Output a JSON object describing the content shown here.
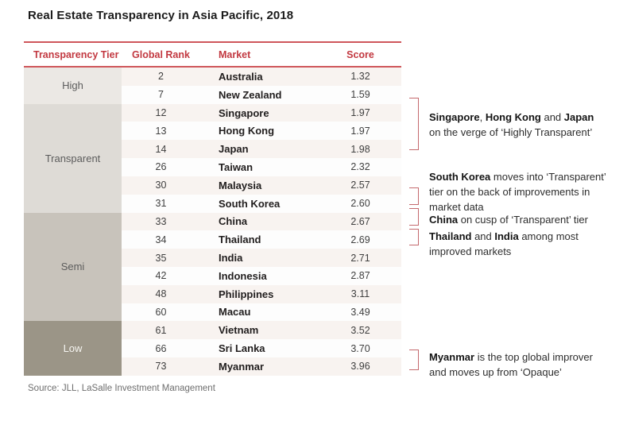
{
  "title": "Real Estate Transparency in Asia Pacific, 2018",
  "source": "Source: JLL, LaSalle Investment Management",
  "colors": {
    "accent_red_text": "#c23840",
    "rule_red": "#cf565b",
    "bracket_red": "#c4696d",
    "row_stripe": "#f8f3f0",
    "tier_high_bg": "#ebe8e4",
    "tier_transparent_bg": "#dedbd6",
    "tier_semi_bg": "#c8c3bb",
    "tier_low_bg": "#9b9587",
    "tier_text_dark": "#5c5c5c",
    "tier_text_light": "#f6f5f1"
  },
  "table": {
    "headers": [
      "Transparency Tier",
      "Global Rank",
      "Market",
      "Score"
    ],
    "tiers": [
      {
        "label": "High",
        "rows": 2,
        "bg": "#ebe8e4",
        "fg": "#5c5c5c"
      },
      {
        "label": "Transparent",
        "rows": 6,
        "bg": "#dedbd6",
        "fg": "#5c5c5c"
      },
      {
        "label": "Semi",
        "rows": 6,
        "bg": "#c8c3bb",
        "fg": "#5c5c5c"
      },
      {
        "label": "Low",
        "rows": 3,
        "bg": "#9b9587",
        "fg": "#f6f5f1"
      }
    ],
    "rows": [
      {
        "rank": "2",
        "market": "Australia",
        "score": "1.32"
      },
      {
        "rank": "7",
        "market": "New Zealand",
        "score": "1.59"
      },
      {
        "rank": "12",
        "market": "Singapore",
        "score": "1.97"
      },
      {
        "rank": "13",
        "market": "Hong Kong",
        "score": "1.97"
      },
      {
        "rank": "14",
        "market": "Japan",
        "score": "1.98"
      },
      {
        "rank": "26",
        "market": "Taiwan",
        "score": "2.32"
      },
      {
        "rank": "30",
        "market": "Malaysia",
        "score": "2.57"
      },
      {
        "rank": "31",
        "market": "South Korea",
        "score": "2.60"
      },
      {
        "rank": "33",
        "market": "China",
        "score": "2.67"
      },
      {
        "rank": "34",
        "market": "Thailand",
        "score": "2.69"
      },
      {
        "rank": "35",
        "market": "India",
        "score": "2.71"
      },
      {
        "rank": "42",
        "market": "Indonesia",
        "score": "2.87"
      },
      {
        "rank": "48",
        "market": "Philippines",
        "score": "3.11"
      },
      {
        "rank": "60",
        "market": "Macau",
        "score": "3.49"
      },
      {
        "rank": "61",
        "market": "Vietnam",
        "score": "3.52"
      },
      {
        "rank": "66",
        "market": "Sri Lanka",
        "score": "3.70"
      },
      {
        "rank": "73",
        "market": "Myanmar",
        "score": "3.96"
      }
    ]
  },
  "annotations": [
    {
      "lines": [
        [
          {
            "t": "Singapore",
            "b": true
          },
          {
            "t": ", ",
            "b": false
          },
          {
            "t": "Hong Kong",
            "b": true
          },
          {
            "t": " and ",
            "b": false
          },
          {
            "t": "Japan",
            "b": true
          }
        ],
        [
          {
            "t": "on the verge of ‘Highly Transparent’",
            "b": false
          }
        ]
      ]
    },
    {
      "lines": [
        [
          {
            "t": "South Korea",
            "b": true
          },
          {
            "t": " moves into ‘Transparent’",
            "b": false
          }
        ],
        [
          {
            "t": "tier on the back of improvements in",
            "b": false
          }
        ],
        [
          {
            "t": "market data",
            "b": false
          }
        ]
      ]
    },
    {
      "lines": [
        [
          {
            "t": "China",
            "b": true
          },
          {
            "t": " on cusp of ‘Transparent’ tier",
            "b": false
          }
        ]
      ]
    },
    {
      "lines": [
        [
          {
            "t": "Thailand",
            "b": true
          },
          {
            "t": " and ",
            "b": false
          },
          {
            "t": "India",
            "b": true
          },
          {
            "t": " among most",
            "b": false
          }
        ],
        [
          {
            "t": "improved markets",
            "b": false
          }
        ]
      ]
    },
    {
      "lines": [
        [
          {
            "t": "Myanmar",
            "b": true
          },
          {
            "t": " is the top global improver",
            "b": false
          }
        ],
        [
          {
            "t": "and moves up from ‘Opaque’",
            "b": false
          }
        ]
      ]
    }
  ],
  "chart_data": {
    "type": "table",
    "title": "Real Estate Transparency in Asia Pacific, 2018",
    "columns": [
      "Transparency Tier",
      "Global Rank",
      "Market",
      "Score"
    ],
    "groups": [
      {
        "tier": "High",
        "markets": [
          [
            "2",
            "Australia",
            1.32
          ],
          [
            "7",
            "New Zealand",
            1.59
          ]
        ]
      },
      {
        "tier": "Transparent",
        "markets": [
          [
            "12",
            "Singapore",
            1.97
          ],
          [
            "13",
            "Hong Kong",
            1.97
          ],
          [
            "14",
            "Japan",
            1.98
          ],
          [
            "26",
            "Taiwan",
            2.32
          ],
          [
            "30",
            "Malaysia",
            2.57
          ],
          [
            "31",
            "South Korea",
            2.6
          ]
        ]
      },
      {
        "tier": "Semi",
        "markets": [
          [
            "33",
            "China",
            2.67
          ],
          [
            "34",
            "Thailand",
            2.69
          ],
          [
            "35",
            "India",
            2.71
          ],
          [
            "42",
            "Indonesia",
            2.87
          ],
          [
            "48",
            "Philippines",
            3.11
          ],
          [
            "60",
            "Macau",
            3.49
          ]
        ]
      },
      {
        "tier": "Low",
        "markets": [
          [
            "61",
            "Vietnam",
            3.52
          ],
          [
            "66",
            "Sri Lanka",
            3.7
          ],
          [
            "73",
            "Myanmar",
            3.96
          ]
        ]
      }
    ],
    "annotations": [
      "Singapore, Hong Kong and Japan on the verge of ‘Highly Transparent’",
      "South Korea moves into ‘Transparent’ tier on the back of improvements in market data",
      "China on cusp of ‘Transparent’ tier",
      "Thailand and India among most improved markets",
      "Myanmar is the top global improver and moves up from ‘Opaque’"
    ],
    "source": "Source: JLL, LaSalle Investment Management"
  }
}
